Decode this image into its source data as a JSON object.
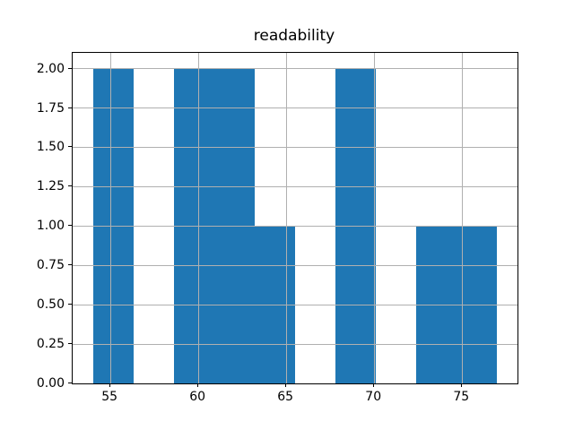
{
  "chart_data": {
    "type": "bar",
    "variant": "histogram",
    "title": "readability",
    "xlabel": "",
    "ylabel": "",
    "bin_edges": [
      54.0,
      56.3,
      58.6,
      60.9,
      63.2,
      65.5,
      67.8,
      70.1,
      72.4,
      74.7,
      77.0
    ],
    "counts": [
      2,
      0,
      2,
      2,
      1,
      0,
      2,
      0,
      1,
      1
    ],
    "xlim": [
      52.85,
      78.15
    ],
    "ylim": [
      0,
      2.1
    ],
    "x_ticks": [
      55,
      60,
      65,
      70,
      75
    ],
    "x_tick_labels": [
      "55",
      "60",
      "65",
      "70",
      "75"
    ],
    "y_ticks": [
      0.0,
      0.25,
      0.5,
      0.75,
      1.0,
      1.25,
      1.5,
      1.75,
      2.0
    ],
    "y_tick_labels": [
      "0.00",
      "0.25",
      "0.50",
      "0.75",
      "1.00",
      "1.25",
      "1.50",
      "1.75",
      "2.00"
    ],
    "grid": true,
    "grid_above_bars": true,
    "legend_position": null,
    "colors": {
      "bar": "#1f77b4",
      "grid": "#b0b0b0",
      "spine": "#000000",
      "background": "#ffffff",
      "text": "#000000"
    }
  }
}
